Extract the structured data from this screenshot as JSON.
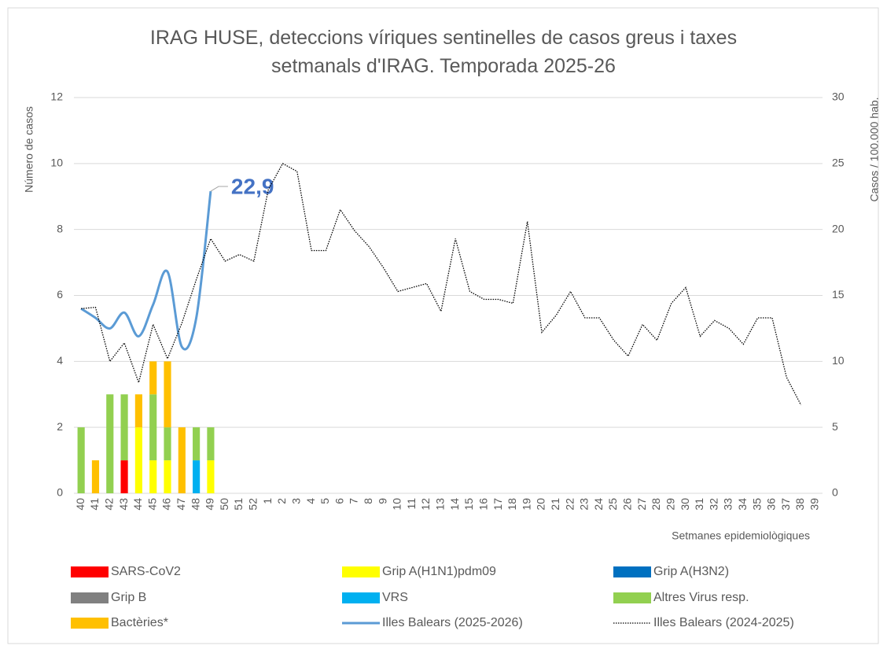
{
  "chart_data": {
    "type": "bar",
    "title": "IRAG HUSE, deteccions víriques sentinelles de casos greus i taxes setmanals d'IRAG. Temporada 2025-26",
    "y_label": "Número de casos",
    "y2_label": "Casos / 100.000 hab.",
    "x_label": "Setmanes epidemiològiques",
    "stacked": true,
    "grid": true,
    "categories": [
      "40",
      "41",
      "42",
      "43",
      "44",
      "45",
      "46",
      "47",
      "48",
      "49",
      "50",
      "51",
      "52",
      "1",
      "2",
      "3",
      "4",
      "5",
      "6",
      "7",
      "8",
      "9",
      "10",
      "11",
      "12",
      "13",
      "14",
      "15",
      "16",
      "17",
      "18",
      "19",
      "20",
      "21",
      "22",
      "23",
      "24",
      "25",
      "26",
      "27",
      "28",
      "29",
      "30",
      "31",
      "32",
      "33",
      "34",
      "35",
      "36",
      "37",
      "38",
      "39"
    ],
    "ylim": [
      0,
      12
    ],
    "yticks": [
      0,
      2,
      4,
      6,
      8,
      10,
      12
    ],
    "y2lim": [
      0,
      30
    ],
    "y2ticks": [
      0,
      5,
      10,
      15,
      20,
      25,
      30
    ],
    "series": [
      {
        "name": "SARS-CoV2",
        "color": "#ff0000",
        "values": [
          0,
          0,
          0,
          1,
          0,
          0,
          0,
          0,
          0,
          0,
          0,
          0,
          0,
          0,
          0,
          0,
          0,
          0,
          0,
          0,
          0,
          0,
          0,
          0,
          0,
          0,
          0,
          0,
          0,
          0,
          0,
          0,
          0,
          0,
          0,
          0,
          0,
          0,
          0,
          0,
          0,
          0,
          0,
          0,
          0,
          0,
          0,
          0,
          0,
          0,
          0,
          0
        ]
      },
      {
        "name": "Grip A(H1N1)pdm09",
        "color": "#ffff00",
        "values": [
          0,
          0,
          0,
          0,
          2,
          1,
          1,
          0,
          0,
          1,
          0,
          0,
          0,
          0,
          0,
          0,
          0,
          0,
          0,
          0,
          0,
          0,
          0,
          0,
          0,
          0,
          0,
          0,
          0,
          0,
          0,
          0,
          0,
          0,
          0,
          0,
          0,
          0,
          0,
          0,
          0,
          0,
          0,
          0,
          0,
          0,
          0,
          0,
          0,
          0,
          0,
          0
        ]
      },
      {
        "name": "Grip A(H3N2)",
        "color": "#0070c0",
        "values": [
          0,
          0,
          0,
          0,
          0,
          0,
          0,
          0,
          0,
          0,
          0,
          0,
          0,
          0,
          0,
          0,
          0,
          0,
          0,
          0,
          0,
          0,
          0,
          0,
          0,
          0,
          0,
          0,
          0,
          0,
          0,
          0,
          0,
          0,
          0,
          0,
          0,
          0,
          0,
          0,
          0,
          0,
          0,
          0,
          0,
          0,
          0,
          0,
          0,
          0,
          0,
          0
        ]
      },
      {
        "name": "Grip B",
        "color": "#808080",
        "values": [
          0,
          0,
          0,
          0,
          0,
          0,
          0,
          0,
          0,
          0,
          0,
          0,
          0,
          0,
          0,
          0,
          0,
          0,
          0,
          0,
          0,
          0,
          0,
          0,
          0,
          0,
          0,
          0,
          0,
          0,
          0,
          0,
          0,
          0,
          0,
          0,
          0,
          0,
          0,
          0,
          0,
          0,
          0,
          0,
          0,
          0,
          0,
          0,
          0,
          0,
          0,
          0
        ]
      },
      {
        "name": "VRS",
        "color": "#00b0f0",
        "values": [
          0,
          0,
          0,
          0,
          0,
          0,
          0,
          0,
          1,
          0,
          0,
          0,
          0,
          0,
          0,
          0,
          0,
          0,
          0,
          0,
          0,
          0,
          0,
          0,
          0,
          0,
          0,
          0,
          0,
          0,
          0,
          0,
          0,
          0,
          0,
          0,
          0,
          0,
          0,
          0,
          0,
          0,
          0,
          0,
          0,
          0,
          0,
          0,
          0,
          0,
          0,
          0
        ]
      },
      {
        "name": "Altres Virus resp.",
        "color": "#92d050",
        "values": [
          2,
          0,
          3,
          2,
          0,
          2,
          1,
          0,
          1,
          1,
          0,
          0,
          0,
          0,
          0,
          0,
          0,
          0,
          0,
          0,
          0,
          0,
          0,
          0,
          0,
          0,
          0,
          0,
          0,
          0,
          0,
          0,
          0,
          0,
          0,
          0,
          0,
          0,
          0,
          0,
          0,
          0,
          0,
          0,
          0,
          0,
          0,
          0,
          0,
          0,
          0,
          0
        ]
      },
      {
        "name": "Bactèries*",
        "color": "#ffc000",
        "values": [
          0,
          1,
          0,
          0,
          1,
          1,
          2,
          2,
          0,
          0,
          0,
          0,
          0,
          0,
          0,
          0,
          0,
          0,
          0,
          0,
          0,
          0,
          0,
          0,
          0,
          0,
          0,
          0,
          0,
          0,
          0,
          0,
          0,
          0,
          0,
          0,
          0,
          0,
          0,
          0,
          0,
          0,
          0,
          0,
          0,
          0,
          0,
          0,
          0,
          0,
          0,
          0
        ]
      },
      {
        "name": "Illes Balears (2025-2026)",
        "color": "#5b9bd5",
        "type": "line",
        "smooth": true,
        "axis": "y2",
        "values": [
          14.0,
          13.3,
          12.5,
          13.7,
          11.9,
          14.3,
          16.8,
          11.1,
          13.3,
          22.9,
          null,
          null,
          null,
          null,
          null,
          null,
          null,
          null,
          null,
          null,
          null,
          null,
          null,
          null,
          null,
          null,
          null,
          null,
          null,
          null,
          null,
          null,
          null,
          null,
          null,
          null,
          null,
          null,
          null,
          null,
          null,
          null,
          null,
          null,
          null,
          null,
          null,
          null,
          null,
          null,
          null,
          null
        ],
        "value_labels": [
          null,
          null,
          null,
          null,
          null,
          null,
          null,
          null,
          null,
          "22,9",
          null,
          null,
          null,
          null,
          null,
          null,
          null,
          null,
          null,
          null,
          null,
          null,
          null,
          null,
          null,
          null,
          null,
          null,
          null,
          null,
          null,
          null,
          null,
          null,
          null,
          null,
          null,
          null,
          null,
          null,
          null,
          null,
          null,
          null,
          null,
          null,
          null,
          null,
          null,
          null,
          null,
          null
        ]
      },
      {
        "name": "Illes Balears (2024-2025)",
        "color": "#000000",
        "type": "line",
        "dash": "dotted",
        "axis": "y2",
        "values": [
          14.0,
          14.1,
          10.0,
          11.4,
          8.4,
          12.8,
          10.2,
          12.9,
          16.2,
          19.3,
          17.6,
          18.1,
          17.6,
          23.0,
          25.0,
          24.4,
          18.4,
          18.4,
          21.5,
          19.9,
          18.7,
          17.1,
          15.3,
          15.6,
          15.9,
          13.8,
          19.3,
          15.3,
          14.7,
          14.7,
          14.4,
          20.6,
          12.2,
          13.5,
          15.3,
          13.3,
          13.3,
          11.6,
          10.4,
          12.8,
          11.6,
          14.4,
          15.6,
          11.9,
          13.1,
          12.5,
          11.3,
          13.3,
          13.3,
          8.8,
          6.7,
          null
        ]
      }
    ]
  }
}
